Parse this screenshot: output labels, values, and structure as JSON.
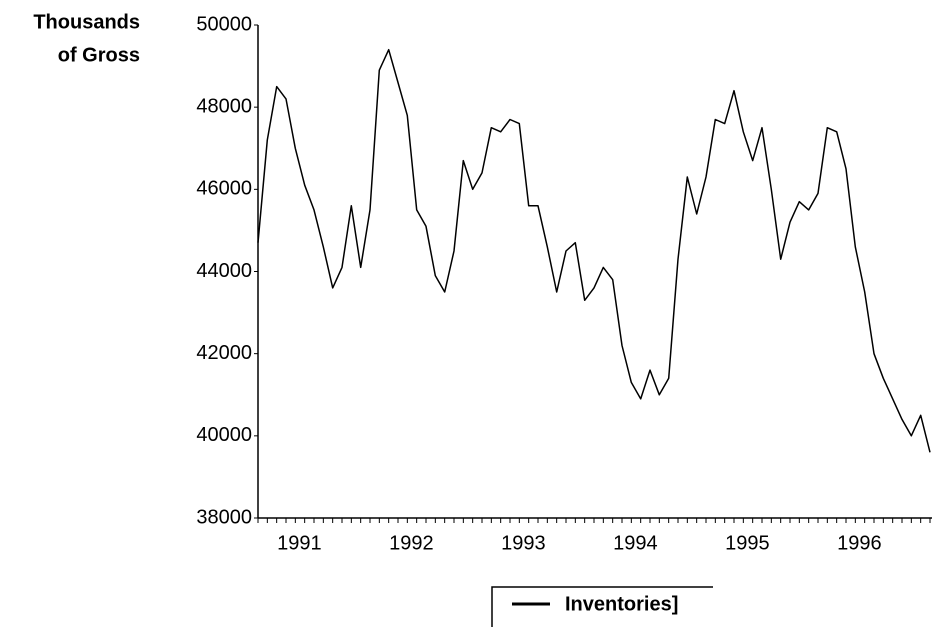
{
  "chart_data": {
    "type": "line",
    "y_label": [
      "Thousands",
      "of Gross"
    ],
    "categories": [
      null,
      null,
      null,
      null,
      "1991",
      null,
      null,
      null,
      null,
      null,
      null,
      null,
      null,
      null,
      null,
      null,
      "1992",
      null,
      null,
      null,
      null,
      null,
      null,
      null,
      null,
      null,
      null,
      null,
      "1993",
      null,
      null,
      null,
      null,
      null,
      null,
      null,
      null,
      null,
      null,
      null,
      "1994",
      null,
      null,
      null,
      null,
      null,
      null,
      null,
      null,
      null,
      null,
      null,
      "1995",
      null,
      null,
      null,
      null,
      null,
      null,
      null,
      null,
      null,
      null,
      null,
      "1996",
      null,
      null,
      null,
      null,
      null,
      null,
      null,
      null
    ],
    "series": [
      {
        "name": "Inventories]",
        "color": "#000000",
        "values": [
          44700,
          47200,
          48500,
          48200,
          47000,
          46100,
          45500,
          44600,
          43600,
          44100,
          45600,
          44100,
          45500,
          48900,
          49400,
          48600,
          47800,
          45500,
          45100,
          43900,
          43500,
          44500,
          46700,
          46000,
          46400,
          47500,
          47400,
          47700,
          47600,
          45600,
          45600,
          44600,
          43500,
          44500,
          44700,
          43300,
          43600,
          44100,
          43800,
          42200,
          41300,
          40900,
          41600,
          41000,
          41400,
          44300,
          46300,
          45400,
          46300,
          47700,
          47600,
          48400,
          47400,
          46700,
          47500,
          46000,
          44300,
          45200,
          45700,
          45500,
          45900,
          47500,
          47400,
          46500,
          44600,
          43500,
          42000,
          41400,
          40900,
          40400,
          40000,
          40500,
          39600
        ]
      }
    ],
    "ylim": [
      38000,
      50000
    ],
    "yticks": [
      38000,
      40000,
      42000,
      44000,
      46000,
      48000,
      50000
    ]
  }
}
